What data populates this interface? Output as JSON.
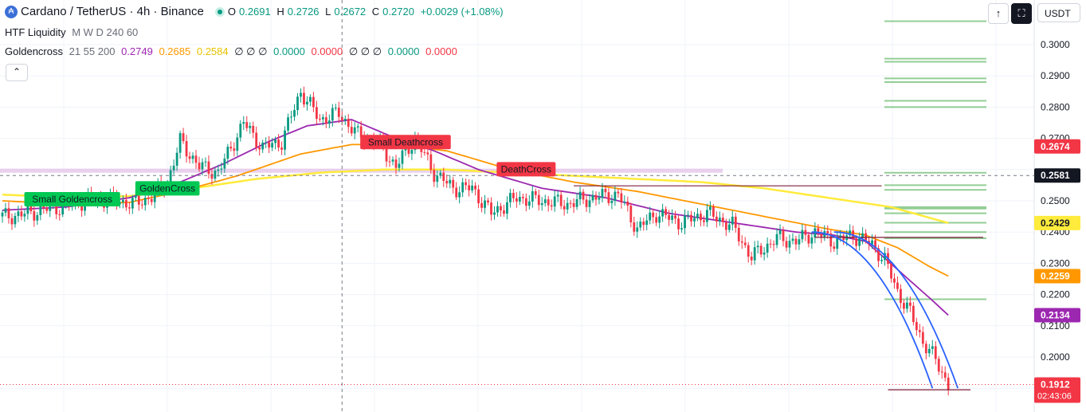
{
  "header": {
    "symbol": "Cardano / TetherUS · 4h · Binance",
    "icon_letter": "₳",
    "o_label": "O",
    "o_value": "0.2691",
    "h_label": "H",
    "h_value": "0.2726",
    "l_label": "L",
    "l_value": "0.2672",
    "c_label": "C",
    "c_value": "0.2720",
    "change": "+0.0029 (+1.08%)"
  },
  "indicators": {
    "htf": {
      "name": "HTF Liquidity",
      "params": "M W D 240 60"
    },
    "goldencross": {
      "name": "Goldencross",
      "params": "21 55 200",
      "v1": "0.2749",
      "v2": "0.2685",
      "v3": "0.2584",
      "empties_a": "∅ ∅ ∅",
      "z1": "0.0000",
      "z2": "0.0000",
      "empties_b": "∅ ∅ ∅",
      "z3": "0.0000",
      "z4": "0.0000"
    }
  },
  "toolbar": {
    "collapse": "⌃",
    "arrow_up": "↑",
    "snapshot": "⛶",
    "currency": "USDT"
  },
  "colors": {
    "up": "#089981",
    "down": "#f23645",
    "ma21": "#9c27b0",
    "ma55": "#ff9800",
    "ma200": "#ffeb3b",
    "liq_zone": "#4caf50",
    "curve": "#2962ff"
  },
  "chart_data": {
    "type": "candlestick",
    "y_axis": {
      "ticks": [
        "0.3000",
        "0.2900",
        "0.2800",
        "0.2700",
        "0.2500",
        "0.2400",
        "0.2300",
        "0.2200",
        "0.2100",
        "0.2000"
      ],
      "ylim": [
        0.1885,
        0.3063
      ]
    },
    "price_labels": [
      {
        "id": "ma200-label",
        "value": 0.2674,
        "text": "0.2674",
        "color": "#f23645"
      },
      {
        "id": "crosshair-label",
        "value": 0.2581,
        "text": "0.2581",
        "color": "#131722"
      },
      {
        "id": "ma55-label",
        "value": 0.2429,
        "text": "0.2429",
        "color": "#ffeb3b",
        "textColor": "#131722"
      },
      {
        "id": "ma21-label",
        "value": 0.2259,
        "text": "0.2259",
        "color": "#ff9800"
      },
      {
        "id": "purple-label",
        "value": 0.2134,
        "text": "0.2134",
        "color": "#9c27b0"
      },
      {
        "id": "last-price-label",
        "value": 0.1912,
        "text": "0.1912",
        "countdown": "02:43:06",
        "color": "#f23645"
      }
    ],
    "annotations": [
      {
        "text": "Small Goldencross",
        "x": 22,
        "y": 0.2505,
        "color": "#00c853"
      },
      {
        "text": "GoldenCross",
        "x": 52,
        "y": 0.254,
        "color": "#00c853"
      },
      {
        "text": "Small Deathcross",
        "x": 127,
        "y": 0.2688,
        "color": "#f23645"
      },
      {
        "text": "DeathCross",
        "x": 165,
        "y": 0.2601,
        "color": "#f23645"
      }
    ],
    "ohlc_keypoints": [
      [
        0,
        0.245
      ],
      [
        6,
        0.2455
      ],
      [
        12,
        0.247
      ],
      [
        18,
        0.248
      ],
      [
        24,
        0.2495
      ],
      [
        30,
        0.2505
      ],
      [
        36,
        0.25
      ],
      [
        42,
        0.249
      ],
      [
        48,
        0.252
      ],
      [
        52,
        0.256
      ],
      [
        56,
        0.269
      ],
      [
        62,
        0.261
      ],
      [
        68,
        0.259
      ],
      [
        76,
        0.275
      ],
      [
        82,
        0.267
      ],
      [
        88,
        0.269
      ],
      [
        94,
        0.285
      ],
      [
        100,
        0.276
      ],
      [
        106,
        0.278
      ],
      [
        112,
        0.271
      ],
      [
        118,
        0.269
      ],
      [
        124,
        0.261
      ],
      [
        130,
        0.27
      ],
      [
        136,
        0.259
      ],
      [
        142,
        0.254
      ],
      [
        148,
        0.254
      ],
      [
        154,
        0.246
      ],
      [
        162,
        0.251
      ],
      [
        170,
        0.25
      ],
      [
        178,
        0.249
      ],
      [
        186,
        0.251
      ],
      [
        194,
        0.252
      ],
      [
        200,
        0.241
      ],
      [
        206,
        0.246
      ],
      [
        214,
        0.243
      ],
      [
        222,
        0.246
      ],
      [
        230,
        0.242
      ],
      [
        236,
        0.232
      ],
      [
        244,
        0.238
      ],
      [
        250,
        0.237
      ],
      [
        256,
        0.24
      ],
      [
        262,
        0.237
      ],
      [
        268,
        0.239
      ],
      [
        274,
        0.236
      ],
      [
        278,
        0.231
      ],
      [
        282,
        0.221
      ],
      [
        286,
        0.214
      ],
      [
        290,
        0.205
      ],
      [
        294,
        0.199
      ],
      [
        298,
        0.1912
      ]
    ],
    "ma21_keypoints": [
      [
        0,
        0.247
      ],
      [
        20,
        0.248
      ],
      [
        40,
        0.251
      ],
      [
        56,
        0.256
      ],
      [
        70,
        0.262
      ],
      [
        84,
        0.269
      ],
      [
        96,
        0.274
      ],
      [
        110,
        0.276
      ],
      [
        124,
        0.27
      ],
      [
        136,
        0.266
      ],
      [
        150,
        0.26
      ],
      [
        170,
        0.254
      ],
      [
        190,
        0.251
      ],
      [
        210,
        0.246
      ],
      [
        230,
        0.243
      ],
      [
        250,
        0.24
      ],
      [
        262,
        0.239
      ],
      [
        272,
        0.237
      ],
      [
        282,
        0.228
      ],
      [
        292,
        0.219
      ],
      [
        298,
        0.2134
      ]
    ],
    "ma55_keypoints": [
      [
        0,
        0.25
      ],
      [
        20,
        0.249
      ],
      [
        40,
        0.2495
      ],
      [
        56,
        0.253
      ],
      [
        74,
        0.258
      ],
      [
        94,
        0.265
      ],
      [
        110,
        0.268
      ],
      [
        124,
        0.268
      ],
      [
        140,
        0.266
      ],
      [
        160,
        0.26
      ],
      [
        180,
        0.256
      ],
      [
        200,
        0.253
      ],
      [
        220,
        0.249
      ],
      [
        240,
        0.245
      ],
      [
        260,
        0.241
      ],
      [
        272,
        0.239
      ],
      [
        282,
        0.235
      ],
      [
        292,
        0.229
      ],
      [
        298,
        0.2259
      ]
    ],
    "ma200_keypoints": [
      [
        0,
        0.252
      ],
      [
        20,
        0.251
      ],
      [
        40,
        0.2515
      ],
      [
        60,
        0.254
      ],
      [
        80,
        0.257
      ],
      [
        100,
        0.259
      ],
      [
        120,
        0.26
      ],
      [
        140,
        0.26
      ],
      [
        160,
        0.259
      ],
      [
        180,
        0.258
      ],
      [
        200,
        0.257
      ],
      [
        220,
        0.256
      ],
      [
        240,
        0.254
      ],
      [
        260,
        0.251
      ],
      [
        280,
        0.248
      ],
      [
        298,
        0.2429
      ]
    ],
    "curves": [
      {
        "from": [
          255,
          0.24
        ],
        "to": [
          293,
          0.19
        ]
      },
      {
        "from": [
          262,
          0.24
        ],
        "to": [
          301,
          0.19
        ]
      }
    ],
    "liquidity_levels": [
      0.3075,
      0.2955,
      0.2945,
      0.2892,
      0.288,
      0.282,
      0.28,
      0.259,
      0.255,
      0.2535,
      0.248,
      0.2475,
      0.246,
      0.243,
      0.24,
      0.238,
      0.2185
    ],
    "horizontal_lines": [
      {
        "y": 0.2548,
        "x1": 180,
        "x2": 277,
        "color": "#7b1f3b"
      },
      {
        "y": 0.2383,
        "x1": 256,
        "x2": 309,
        "color": "#7b1f3b"
      },
      {
        "y": 0.1895,
        "x1": 279,
        "x2": 305,
        "color": "#7b1f3b"
      }
    ],
    "crosshair": {
      "x": 107,
      "y": 0.2581
    }
  }
}
